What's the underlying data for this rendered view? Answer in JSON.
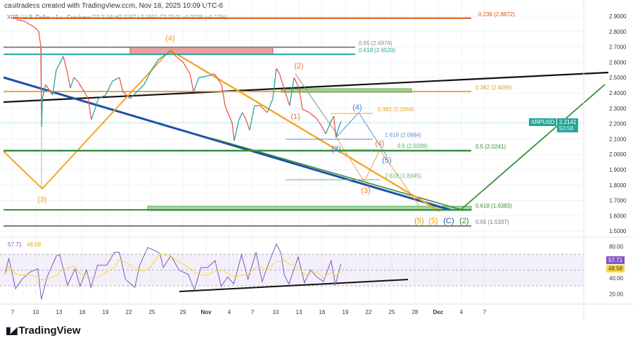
{
  "header": {
    "credit": "casitradess created with TradingView.com, Nov 18, 2025 10:09 UTC-6",
    "symbol_line": "XRP / U.S. Dollar · 1h · Coinbase",
    "ohlc": "O2.2115 H2.2157 L2.1991 C2.2141 −0.0026 (−0.12%)"
  },
  "price_tag": {
    "symbol": "XRPUSD",
    "price": "2.2141",
    "countdown": "50:58",
    "color": "#26a69a"
  },
  "rsi_tags": {
    "rsi": "57.71",
    "ma": "48.58",
    "rsi_color": "#7e57c2",
    "ma_color": "#fdd835"
  },
  "rsi_legend": {
    "rsi": "57.71",
    "ma": "48.58"
  },
  "brand": {
    "name": "TradingView"
  },
  "chart_data": [
    {
      "type": "line",
      "title": "XRP / U.S. Dollar · 1h · Coinbase",
      "price_axis_ticks": [
        "2.9000",
        "2.8000",
        "2.7000",
        "2.6000",
        "2.5000",
        "2.4000",
        "2.3000",
        "2.2000",
        "2.1000",
        "2.0000",
        "1.9000",
        "1.8000",
        "1.7000",
        "1.6000",
        "1.5000"
      ],
      "time_axis_ticks": [
        {
          "label": "7",
          "date": "10-07"
        },
        {
          "label": "10",
          "date": "10-10"
        },
        {
          "label": "13",
          "date": "10-13"
        },
        {
          "label": "16",
          "date": "10-16"
        },
        {
          "label": "19",
          "date": "10-19"
        },
        {
          "label": "22",
          "date": "10-22"
        },
        {
          "label": "25",
          "date": "10-25"
        },
        {
          "label": "29",
          "date": "10-29"
        },
        {
          "label": "Nov",
          "date": "11-01"
        },
        {
          "label": "4",
          "date": "11-04"
        },
        {
          "label": "7",
          "date": "11-07"
        },
        {
          "label": "10",
          "date": "11-10"
        },
        {
          "label": "13",
          "date": "11-13"
        },
        {
          "label": "16",
          "date": "11-16"
        },
        {
          "label": "19",
          "date": "11-19"
        },
        {
          "label": "22",
          "date": "11-22"
        },
        {
          "label": "25",
          "date": "11-25"
        },
        {
          "label": "28",
          "date": "11-28"
        },
        {
          "label": "Dec",
          "date": "12-01"
        },
        {
          "label": "4",
          "date": "12-04"
        },
        {
          "label": "7",
          "date": "12-07"
        }
      ],
      "ylim": [
        1.47,
        2.93
      ],
      "grid": true,
      "up_color": "#26a69a",
      "down_color": "#ef5350",
      "price": [
        [
          "10-07 12:00",
          2.877
        ],
        [
          "10-08 12:00",
          2.868
        ],
        [
          "10-10 00:00",
          2.822
        ],
        [
          "10-10 09:00",
          2.8
        ],
        [
          "10-10 15:00",
          2.708
        ],
        [
          "10-10 18:00",
          2.18
        ],
        [
          "10-10 20:00",
          2.363
        ],
        [
          "10-11 06:00",
          2.455
        ],
        [
          "10-12 04:00",
          2.386
        ],
        [
          "10-12 15:00",
          2.547
        ],
        [
          "10-13 13:00",
          2.639
        ],
        [
          "10-14 00:00",
          2.547
        ],
        [
          "10-14 11:00",
          2.432
        ],
        [
          "10-14 22:00",
          2.5
        ],
        [
          "10-15 09:00",
          2.478
        ],
        [
          "10-16 06:00",
          2.409
        ],
        [
          "10-16 18:00",
          2.363
        ],
        [
          "10-17 04:00",
          2.226
        ],
        [
          "10-17 15:00",
          2.294
        ],
        [
          "10-18 02:00",
          2.363
        ],
        [
          "10-19 00:00",
          2.386
        ],
        [
          "10-19 22:00",
          2.478
        ],
        [
          "10-20 19:00",
          2.5
        ],
        [
          "10-21 06:00",
          2.409
        ],
        [
          "10-22 04:00",
          2.363
        ],
        [
          "10-23 02:00",
          2.409
        ],
        [
          "10-24 00:00",
          2.455
        ],
        [
          "10-24 22:00",
          2.547
        ],
        [
          "10-25 19:00",
          2.616
        ],
        [
          "10-26 17:00",
          2.648
        ],
        [
          "10-27 11:00",
          2.675
        ],
        [
          "10-28 02:00",
          2.639
        ],
        [
          "10-29 00:00",
          2.602
        ],
        [
          "10-29 22:00",
          2.524
        ],
        [
          "10-30 09:00",
          2.409
        ],
        [
          "10-31 02:00",
          2.5
        ],
        [
          "11-01 05:00",
          2.51
        ],
        [
          "11-02 02:00",
          2.524
        ],
        [
          "11-03 00:00",
          2.455
        ],
        [
          "11-03 11:00",
          2.317
        ],
        [
          "11-04 09:00",
          2.203
        ],
        [
          "11-04 15:00",
          2.088
        ],
        [
          "11-05 06:00",
          2.226
        ],
        [
          "11-05 17:00",
          2.272
        ],
        [
          "11-06 04:00",
          2.226
        ],
        [
          "11-06 15:00",
          2.157
        ],
        [
          "11-07 06:00",
          2.317
        ],
        [
          "11-08 00:00",
          2.317
        ],
        [
          "11-08 22:00",
          2.272
        ],
        [
          "11-09 15:00",
          2.363
        ],
        [
          "11-10 02:00",
          2.56
        ],
        [
          "11-10 12:00",
          2.524
        ],
        [
          "11-11 05:00",
          2.409
        ],
        [
          "11-11 19:00",
          2.317
        ],
        [
          "11-12 09:00",
          2.5
        ],
        [
          "11-13 00:00",
          2.432
        ],
        [
          "11-13 11:00",
          2.294
        ],
        [
          "11-14 09:00",
          2.272
        ],
        [
          "11-15 06:00",
          2.235
        ],
        [
          "11-16 00:00",
          2.18
        ],
        [
          "11-16 11:00",
          2.134
        ],
        [
          "11-17 06:00",
          2.226
        ],
        [
          "11-17 12:00",
          2.249
        ],
        [
          "11-17 19:00",
          2.111
        ],
        [
          "11-18 02:00",
          2.166
        ],
        [
          "11-18 11:00",
          2.2141
        ]
      ],
      "fib_levels": [
        {
          "label": "0.236 (2.8872)",
          "price": 2.8872,
          "color": "#e65100"
        },
        {
          "label": "0.65 (2.6974)",
          "price": 2.6974,
          "color": "#888888"
        },
        {
          "label": "0.618 (2.6520)",
          "price": 2.652,
          "color": "#26a69a"
        },
        {
          "label": "0.382 (2.4099)",
          "price": 2.4099,
          "color": "#f39c12"
        },
        {
          "label": "0.382 (2.2664)",
          "price": 2.2664,
          "color": "#f5a623"
        },
        {
          "label": "1.618 (2.0984)",
          "price": 2.0984,
          "color": "#5b8fd6"
        },
        {
          "label": "0.5 (2.0289)",
          "price": 2.0289,
          "color": "#4caf50"
        },
        {
          "label": "0.5 (2.0241)",
          "price": 2.0241,
          "color": "#388e3c"
        },
        {
          "label": "2.618 (1.8345)",
          "price": 1.8345,
          "color": "#66bb6a"
        },
        {
          "label": "0.618 (1.6383)",
          "price": 1.6383,
          "color": "#388e3c"
        },
        {
          "label": "0.65 (1.5337)",
          "price": 1.5337,
          "color": "#777777"
        }
      ],
      "wave_labels": [
        {
          "text": "(4)",
          "color": "#f39c12"
        },
        {
          "text": "(3)",
          "color": "#f39c12"
        },
        {
          "text": "(2)",
          "color": "#e08040"
        },
        {
          "text": "(1)",
          "color": "#e08040"
        },
        {
          "text": "(4)",
          "color": "#3d7bd1"
        },
        {
          "text": "(3)",
          "color": "#3d7bd1"
        },
        {
          "text": "(5)",
          "color": "#3d7bd1"
        },
        {
          "text": "(4)",
          "color": "#e08040"
        },
        {
          "text": "(3)",
          "color": "#e08040"
        },
        {
          "text": "(5)",
          "color": "#c9a000"
        },
        {
          "text": "(5)",
          "color": "#f39c12"
        },
        {
          "text": "(C)",
          "color": "#1f4e9c"
        },
        {
          "text": "(2)",
          "color": "#2e7d32"
        }
      ]
    },
    {
      "type": "line",
      "title": "RSI",
      "axis_ticks": [
        "80.00",
        "40.00",
        "20.00"
      ],
      "bands": [
        70,
        50,
        30
      ],
      "ylim": [
        10,
        90
      ],
      "series": [
        {
          "name": "RSI",
          "last": 57.71,
          "color": "#7e57c2"
        },
        {
          "name": "RSI MA",
          "last": 48.58,
          "color": "#fdd835"
        }
      ],
      "rsi": [
        [
          "10-06 00:00",
          44.2
        ],
        [
          "10-06 12:00",
          64.9
        ],
        [
          "10-07 09:00",
          26.4
        ],
        [
          "10-08 05:00",
          38.3
        ],
        [
          "10-09 05:00",
          47.2
        ],
        [
          "10-10 06:00",
          51.6
        ],
        [
          "10-10 17:00",
          13.1
        ],
        [
          "10-11 11:00",
          41.3
        ],
        [
          "10-12 16:00",
          68.0
        ],
        [
          "10-13 02:00",
          69.4
        ],
        [
          "10-14 02:00",
          30.9
        ],
        [
          "10-15 02:00",
          51.6
        ],
        [
          "10-15 17:00",
          29.4
        ],
        [
          "10-16 13:00",
          50.1
        ],
        [
          "10-17 03:00",
          28.0
        ],
        [
          "10-17 23:00",
          56.0
        ],
        [
          "10-19 04:00",
          56.0
        ],
        [
          "10-20 04:00",
          72.4
        ],
        [
          "10-20 19:00",
          72.4
        ],
        [
          "10-21 14:00",
          38.3
        ],
        [
          "10-22 19:00",
          28.0
        ],
        [
          "10-23 10:00",
          56.0
        ],
        [
          "10-24 11:00",
          78.3
        ],
        [
          "10-25 06:00",
          75.3
        ],
        [
          "10-26 01:00",
          70.9
        ],
        [
          "10-26 11:00",
          53.1
        ],
        [
          "10-27 11:00",
          68.0
        ],
        [
          "10-28 12:00",
          50.1
        ],
        [
          "10-29 17:00",
          44.2
        ],
        [
          "10-30 12:00",
          25.0
        ],
        [
          "10-31 08:00",
          53.1
        ],
        [
          "11-01 04:00",
          53.1
        ],
        [
          "11-02 04:00",
          61.9
        ],
        [
          "11-02 23:00",
          29.4
        ],
        [
          "11-03 19:00",
          41.3
        ],
        [
          "11-04 14:00",
          32.4
        ],
        [
          "11-05 14:00",
          69.4
        ],
        [
          "11-06 10:00",
          38.3
        ],
        [
          "11-07 11:00",
          72.4
        ],
        [
          "11-08 06:00",
          35.3
        ],
        [
          "11-08 21:00",
          53.1
        ],
        [
          "11-10 02:00",
          82.8
        ],
        [
          "11-10 17:00",
          70.9
        ],
        [
          "11-11 02:00",
          44.2
        ],
        [
          "11-11 17:00",
          32.4
        ],
        [
          "11-12 22:00",
          66.5
        ],
        [
          "11-13 17:00",
          33.9
        ],
        [
          "11-14 12:00",
          50.1
        ],
        [
          "11-15 08:00",
          41.3
        ],
        [
          "11-16 04:00",
          35.3
        ],
        [
          "11-17 04:00",
          61.9
        ],
        [
          "11-17 17:00",
          30.9
        ],
        [
          "11-18 10:00",
          57.71
        ]
      ]
    }
  ]
}
